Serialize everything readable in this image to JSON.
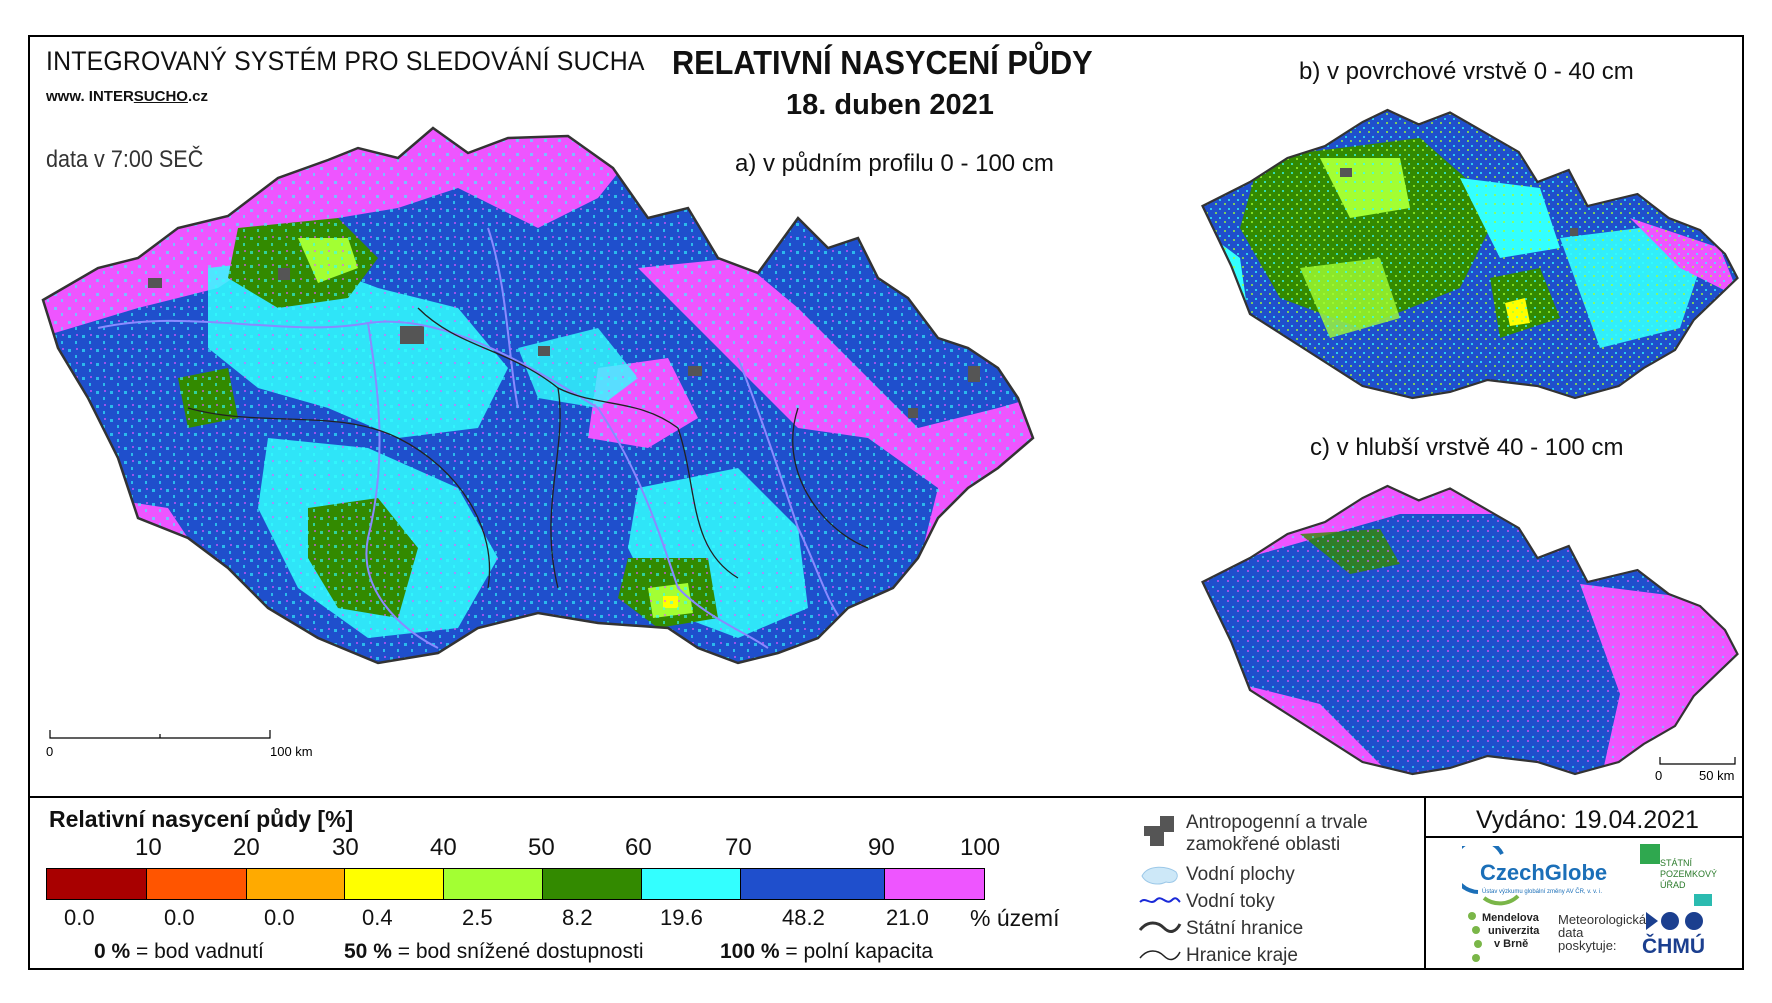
{
  "header": {
    "system_title": "INTEGROVANÝ SYSTÉM PRO SLEDOVÁNÍ SUCHA",
    "website_prefix": "www. INTER",
    "website_mid": "SUCHO",
    "website_suffix": ".cz",
    "data_time": "data v 7:00 SEČ",
    "main_title": "RELATIVNÍ NASYCENÍ PŮDY",
    "date": "18. duben 2021"
  },
  "maps": {
    "a_label": "a) v půdním profilu 0 - 100 cm",
    "b_label": "b) v povrchové vrstvě 0 - 40 cm",
    "c_label": "c) v hlubší vrstvě 40 - 100 cm",
    "scale_main": {
      "zero": "0",
      "end": "100 km"
    },
    "scale_small": {
      "zero": "0",
      "end": "50 km"
    }
  },
  "legend": {
    "title": "Relativní nasycení půdy [%]",
    "ticks": [
      "10",
      "20",
      "30",
      "40",
      "50",
      "60",
      "70",
      "90",
      "100"
    ],
    "classes": [
      {
        "color": "#a80000",
        "percent": "0.0"
      },
      {
        "color": "#ff5500",
        "percent": "0.0"
      },
      {
        "color": "#ffaa00",
        "percent": "0.0"
      },
      {
        "color": "#ffff00",
        "percent": "0.4"
      },
      {
        "color": "#a3ff33",
        "percent": "2.5"
      },
      {
        "color": "#338a00",
        "percent": "8.2"
      },
      {
        "color": "#33ffff",
        "percent": "19.6"
      },
      {
        "color": "#1f4fcc",
        "percent": "48.2"
      },
      {
        "color": "#ee55ff",
        "percent": "21.0"
      }
    ],
    "unit": "% území",
    "notes": [
      {
        "value": "0 %",
        "text": "= bod vadnutí"
      },
      {
        "value": "50 %",
        "text": "= bod snížené dostupnosti"
      },
      {
        "value": "100 %",
        "text": "= polní kapacita"
      }
    ]
  },
  "map_legend": {
    "anthropogenic": "Antropogenní a trvale zamokřené oblasti",
    "water_bodies": "Vodní plochy",
    "rivers": "Vodní toky",
    "state_border": "Státní hranice",
    "region_border": "Hranice kraje"
  },
  "footer": {
    "issued": "Vydáno: 19.04.2021",
    "czechglobe": "CzechGlobe",
    "czechglobe_sub": "Ústav výzkumu globální změny AV ČR, v. v. i.",
    "spu": [
      "STÁTNÍ",
      "POZEMKOVÝ",
      "ÚŘAD"
    ],
    "mendel": [
      "Mendelova",
      "univerzita",
      "v Brně"
    ],
    "met_data": [
      "Meteorologická",
      "data",
      "poskytuje:"
    ],
    "chmu": "ČHMÚ"
  },
  "colors": {
    "wet": "#ee55ff",
    "moist": "#1f4fcc",
    "medium": "#33ffff",
    "drier": "#338a00",
    "dry": "#a3ff33",
    "anthropogenic": "#555555"
  }
}
